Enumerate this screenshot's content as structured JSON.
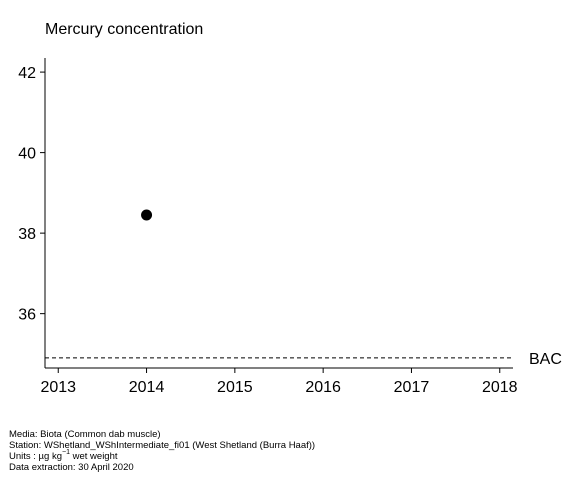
{
  "chart_data": {
    "type": "scatter",
    "title": "Mercury concentration",
    "xlabel": "",
    "ylabel": "",
    "xlim": [
      2012.85,
      2018.15
    ],
    "ylim": [
      34.65,
      42.35
    ],
    "x_ticks": [
      2013,
      2014,
      2015,
      2016,
      2017,
      2018
    ],
    "y_ticks": [
      36,
      38,
      40,
      42
    ],
    "series": [
      {
        "points": [
          {
            "x": 2014,
            "y": 38.45
          }
        ]
      }
    ],
    "reference_lines": [
      {
        "label": "BAC",
        "y": 34.9,
        "style": "dashed"
      }
    ],
    "grid": false
  },
  "footer": {
    "media": "Media: Biota (Common dab muscle)",
    "station": "Station: WShetland_WShIntermediate_fi01 (West Shetland (Burra Haaf))",
    "units_prefix": "Units : µg kg",
    "units_sup": "−1",
    "units_suffix": " wet weight",
    "extraction": "Data extraction: 30 April 2020"
  }
}
